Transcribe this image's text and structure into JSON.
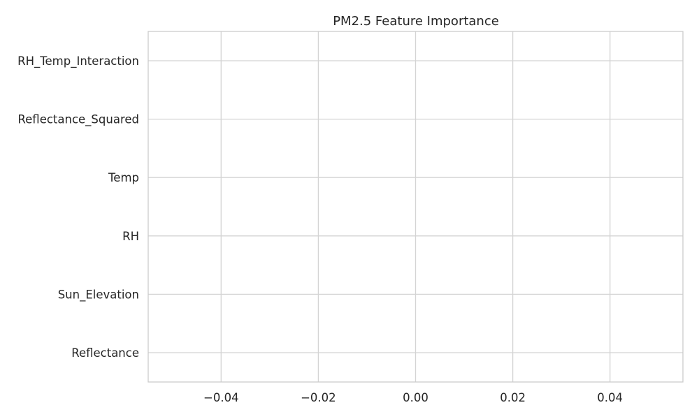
{
  "chart_data": {
    "type": "bar",
    "orientation": "horizontal",
    "title": "PM2.5 Feature Importance",
    "xlabel": "",
    "ylabel": "",
    "categories": [
      "RH_Temp_Interaction",
      "Reflectance_Squared",
      "Temp",
      "RH",
      "Sun_Elevation",
      "Reflectance"
    ],
    "values": [
      0,
      0,
      0,
      0,
      0,
      0
    ],
    "xlim": [
      -0.055,
      0.055
    ],
    "xticks": [
      -0.04,
      -0.02,
      0.0,
      0.02,
      0.04
    ],
    "xtick_labels": [
      "−0.04",
      "−0.02",
      "0.00",
      "0.02",
      "0.04"
    ],
    "grid": true,
    "legend": "none",
    "style": "whitegrid",
    "bar_color": "#4c72b0"
  }
}
